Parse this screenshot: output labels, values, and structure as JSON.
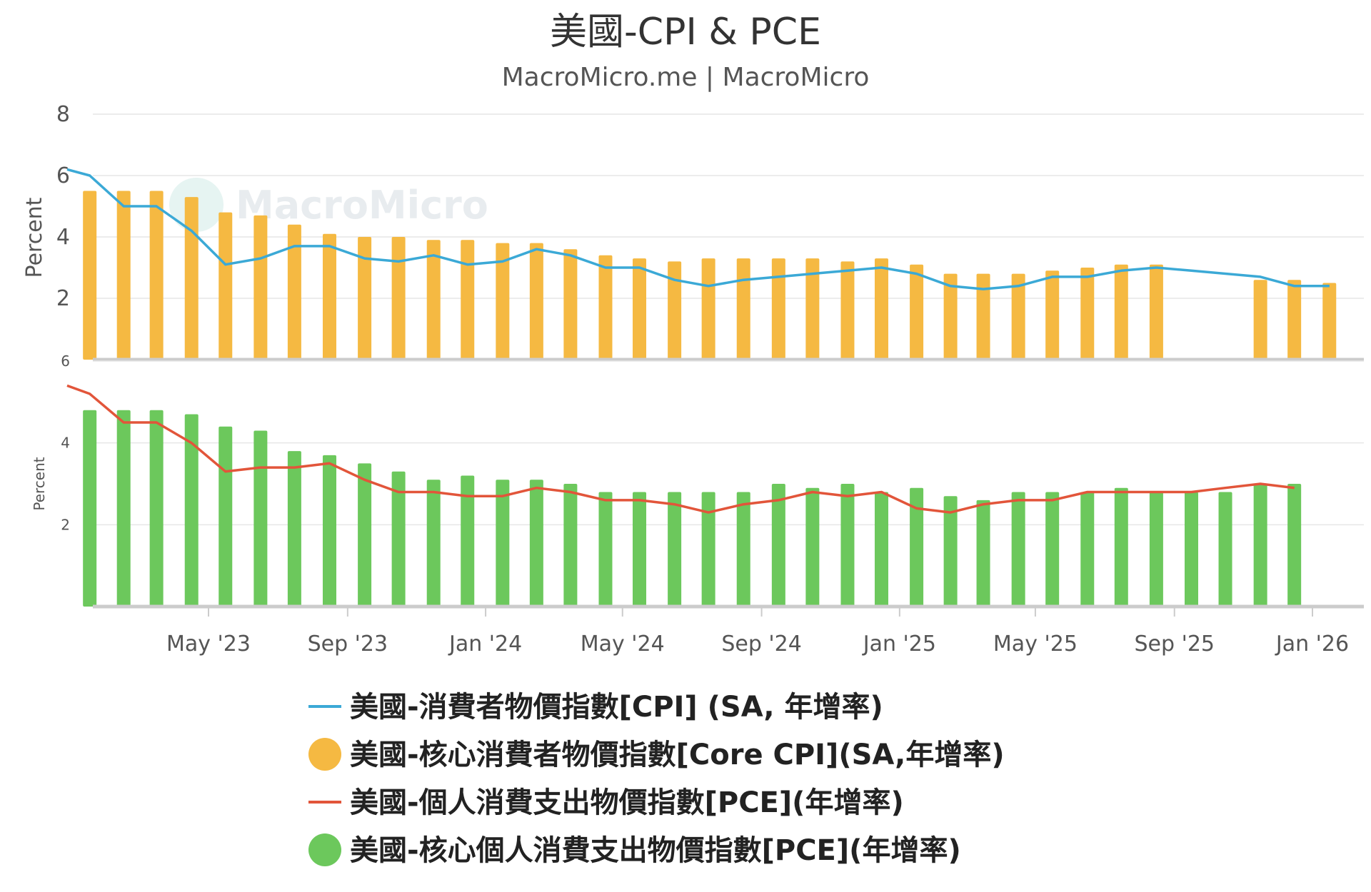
{
  "title": "美國-CPI & PCE",
  "subtitle": "MacroMicro.me | MacroMicro",
  "watermark": "MacroMicro",
  "colors": {
    "cpi_line": "#3ba9d6",
    "core_cpi_bar": "#f5b942",
    "pce_line": "#e2553a",
    "core_pce_bar": "#6cc85c",
    "grid": "#e6e6e6",
    "axis": "#cccccc"
  },
  "x_axis_labels": [
    "May '23",
    "Sep '23",
    "Jan '24",
    "May '24",
    "Sep '24",
    "Jan '25",
    "May '25",
    "Sep '25",
    "Jan '26"
  ],
  "legend": [
    {
      "label": "美國-消費者物價指數[CPI] (SA, 年增率)",
      "symbol": "line",
      "color": "#3ba9d6"
    },
    {
      "label": "美國-核心消費者物價指數[Core CPI](SA,年增率)",
      "symbol": "circle",
      "color": "#f5b942"
    },
    {
      "label": "美國-個人消費支出物價指數[PCE](年增率)",
      "symbol": "line",
      "color": "#e2553a"
    },
    {
      "label": "美國-核心個人消費支出物價指數[PCE](年增率)",
      "symbol": "circle",
      "color": "#6cc85c"
    }
  ],
  "chart_data": [
    {
      "type": "bar+line",
      "ylabel": "Percent",
      "ylim": [
        0,
        8
      ],
      "yticks": [
        2,
        4,
        6,
        8
      ],
      "grid": true,
      "x": [
        "2023-01",
        "2023-02",
        "2023-03",
        "2023-04",
        "2023-05",
        "2023-06",
        "2023-07",
        "2023-08",
        "2023-09",
        "2023-10",
        "2023-11",
        "2023-12",
        "2024-01",
        "2024-02",
        "2024-03",
        "2024-04",
        "2024-05",
        "2024-06",
        "2024-07",
        "2024-08",
        "2024-09",
        "2024-10",
        "2024-11",
        "2024-12",
        "2025-01",
        "2025-02",
        "2025-03",
        "2025-04",
        "2025-05",
        "2025-06",
        "2025-07",
        "2025-08",
        "2025-09",
        "2025-10",
        "2025-11",
        "2025-12",
        "2026-01"
      ],
      "line_start": {
        "x": "2022-12-27",
        "value": 6.2
      },
      "series": [
        {
          "name": "美國-消費者物價指數[CPI] (SA, 年增率)",
          "kind": "line",
          "values": [
            6.0,
            5.0,
            5.0,
            4.2,
            3.1,
            3.3,
            3.7,
            3.7,
            3.3,
            3.2,
            3.4,
            3.1,
            3.2,
            3.6,
            3.4,
            3.0,
            3.0,
            2.6,
            2.4,
            2.6,
            2.7,
            2.8,
            2.9,
            3.0,
            2.8,
            2.4,
            2.3,
            2.4,
            2.7,
            2.7,
            2.9,
            3.0,
            2.9,
            null,
            2.7,
            2.4,
            2.4
          ]
        },
        {
          "name": "美國-核心消費者物價指數[Core CPI](SA,年增率)",
          "kind": "bar",
          "values": [
            5.5,
            5.5,
            5.5,
            5.3,
            4.8,
            4.7,
            4.4,
            4.1,
            4.0,
            4.0,
            3.9,
            3.9,
            3.8,
            3.8,
            3.6,
            3.4,
            3.3,
            3.2,
            3.3,
            3.3,
            3.3,
            3.3,
            3.2,
            3.3,
            3.1,
            2.8,
            2.8,
            2.8,
            2.9,
            3.0,
            3.1,
            3.1,
            null,
            null,
            2.6,
            2.6,
            2.5
          ]
        }
      ]
    },
    {
      "type": "bar+line",
      "ylabel": "Percent",
      "ylim": [
        0,
        6
      ],
      "yticks": [
        2,
        4,
        6
      ],
      "grid": true,
      "x": [
        "2023-01",
        "2023-02",
        "2023-03",
        "2023-04",
        "2023-05",
        "2023-06",
        "2023-07",
        "2023-08",
        "2023-09",
        "2023-10",
        "2023-11",
        "2023-12",
        "2024-01",
        "2024-02",
        "2024-03",
        "2024-04",
        "2024-05",
        "2024-06",
        "2024-07",
        "2024-08",
        "2024-09",
        "2024-10",
        "2024-11",
        "2024-12",
        "2025-01",
        "2025-02",
        "2025-03",
        "2025-04",
        "2025-05",
        "2025-06",
        "2025-07",
        "2025-08",
        "2025-09",
        "2025-10",
        "2025-11",
        "2025-12",
        "2026-01"
      ],
      "line_start": {
        "x": "2022-12-27",
        "value": 5.4
      },
      "series": [
        {
          "name": "美國-個人消費支出物價指數[PCE](年增率)",
          "kind": "line",
          "values": [
            5.2,
            4.5,
            4.5,
            4.0,
            3.3,
            3.4,
            3.4,
            3.5,
            3.1,
            2.8,
            2.8,
            2.7,
            2.7,
            2.9,
            2.8,
            2.6,
            2.6,
            2.5,
            2.3,
            2.5,
            2.6,
            2.8,
            2.7,
            2.8,
            2.4,
            2.3,
            2.5,
            2.6,
            2.6,
            2.8,
            2.8,
            2.8,
            2.8,
            2.9,
            3.0,
            2.9,
            null
          ]
        },
        {
          "name": "美國-核心個人消費支出物價指數[PCE](年增率)",
          "kind": "bar",
          "values": [
            4.8,
            4.8,
            4.8,
            4.7,
            4.4,
            4.3,
            3.8,
            3.7,
            3.5,
            3.3,
            3.1,
            3.2,
            3.1,
            3.1,
            3.0,
            2.8,
            2.8,
            2.8,
            2.8,
            2.8,
            3.0,
            2.9,
            3.0,
            2.8,
            2.9,
            2.7,
            2.6,
            2.8,
            2.8,
            2.8,
            2.9,
            2.8,
            2.8,
            2.8,
            3.0,
            3.0,
            null
          ]
        }
      ]
    }
  ]
}
